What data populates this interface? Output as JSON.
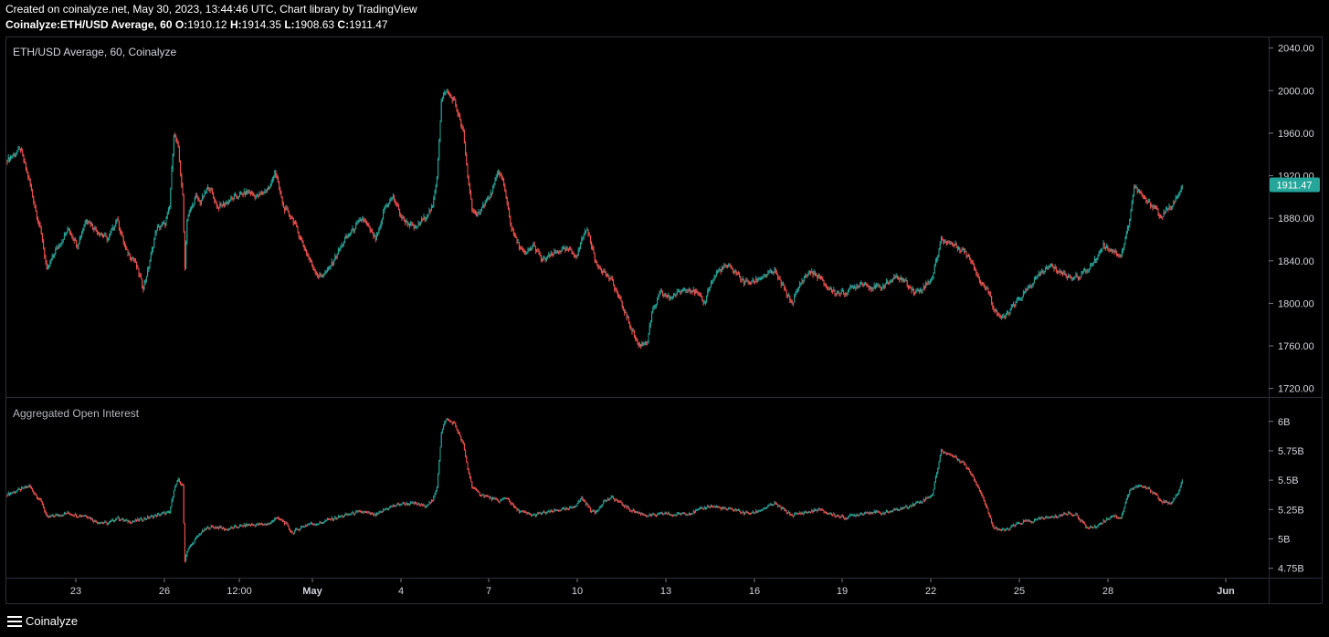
{
  "header": {
    "line1": "Created on coinalyze.net, May 30, 2023, 13:44:46 UTC, Chart library by TradingView",
    "symbol": "Coinalyze:ETH/USD Average, 60",
    "o_label": "O:",
    "o_value": "1910.12",
    "h_label": "H:",
    "h_value": "1914.35",
    "l_label": "L:",
    "l_value": "1908.63",
    "c_label": "C:",
    "c_value": "1911.47"
  },
  "footer": {
    "brand": "Coinalyze",
    "menu_icon": "hamburger-icon"
  },
  "colors": {
    "up": "#26a69a",
    "down": "#ef5350",
    "background": "#000000",
    "border": "#2a2e39",
    "price_badge": "#26a69a",
    "text": "#d1d4dc"
  },
  "chart_data": [
    {
      "type": "candlestick",
      "title": "ETH/USD Average, 60, Coinalyze",
      "ylim": [
        1712,
        2050
      ],
      "y_ticks": [
        "1720.00",
        "1760.00",
        "1800.00",
        "1840.00",
        "1880.00",
        "1920.00",
        "1960.00",
        "2000.00",
        "2040.00"
      ],
      "last_price_label": "1911.47",
      "last_price": 1911.47,
      "x_tick_labels": [
        "23",
        "26",
        "12:00",
        "May",
        "4",
        "7",
        "10",
        "13",
        "16",
        "19",
        "22",
        "25",
        "28",
        "Jun"
      ],
      "path": [
        [
          0,
          1935
        ],
        [
          3,
          1945
        ],
        [
          5,
          1915
        ],
        [
          8,
          1860
        ],
        [
          9,
          1830
        ],
        [
          11,
          1850
        ],
        [
          14,
          1870
        ],
        [
          16,
          1855
        ],
        [
          18,
          1880
        ],
        [
          20,
          1870
        ],
        [
          23,
          1860
        ],
        [
          25,
          1880
        ],
        [
          27,
          1850
        ],
        [
          29,
          1840
        ],
        [
          31,
          1815
        ],
        [
          32,
          1830
        ],
        [
          33,
          1850
        ],
        [
          34,
          1870
        ],
        [
          36,
          1875
        ],
        [
          37,
          1890
        ],
        [
          38,
          1960
        ],
        [
          39,
          1945
        ],
        [
          40,
          1900
        ],
        [
          40.5,
          1835
        ],
        [
          41,
          1880
        ],
        [
          43,
          1900
        ],
        [
          44,
          1895
        ],
        [
          46,
          1910
        ],
        [
          48,
          1890
        ],
        [
          50,
          1895
        ],
        [
          52,
          1900
        ],
        [
          55,
          1905
        ],
        [
          57,
          1900
        ],
        [
          60,
          1910
        ],
        [
          61,
          1925
        ],
        [
          63,
          1890
        ],
        [
          65,
          1880
        ],
        [
          67,
          1860
        ],
        [
          69,
          1840
        ],
        [
          71,
          1825
        ],
        [
          73,
          1830
        ],
        [
          75,
          1845
        ],
        [
          77,
          1860
        ],
        [
          79,
          1870
        ],
        [
          81,
          1880
        ],
        [
          84,
          1860
        ],
        [
          85,
          1870
        ],
        [
          86,
          1890
        ],
        [
          88,
          1900
        ],
        [
          90,
          1880
        ],
        [
          93,
          1870
        ],
        [
          95,
          1880
        ],
        [
          97,
          1890
        ],
        [
          98,
          1920
        ],
        [
          99,
          1990
        ],
        [
          100,
          2000
        ],
        [
          102,
          1990
        ],
        [
          104,
          1960
        ],
        [
          105,
          1920
        ],
        [
          106,
          1890
        ],
        [
          107,
          1880
        ],
        [
          108,
          1890
        ],
        [
          110,
          1900
        ],
        [
          111,
          1910
        ],
        [
          112,
          1925
        ],
        [
          113,
          1915
        ],
        [
          114,
          1895
        ],
        [
          115,
          1870
        ],
        [
          116,
          1860
        ],
        [
          118,
          1845
        ],
        [
          120,
          1855
        ],
        [
          122,
          1840
        ],
        [
          124,
          1845
        ],
        [
          126,
          1850
        ],
        [
          128,
          1850
        ],
        [
          130,
          1845
        ],
        [
          131,
          1860
        ],
        [
          132,
          1870
        ],
        [
          133,
          1860
        ],
        [
          134,
          1840
        ],
        [
          136,
          1830
        ],
        [
          138,
          1820
        ],
        [
          140,
          1800
        ],
        [
          142,
          1780
        ],
        [
          144,
          1760
        ],
        [
          146,
          1765
        ],
        [
          147,
          1790
        ],
        [
          149,
          1810
        ],
        [
          151,
          1805
        ],
        [
          153,
          1810
        ],
        [
          155,
          1815
        ],
        [
          157,
          1810
        ],
        [
          159,
          1800
        ],
        [
          160,
          1815
        ],
        [
          162,
          1830
        ],
        [
          164,
          1835
        ],
        [
          166,
          1830
        ],
        [
          168,
          1820
        ],
        [
          170,
          1820
        ],
        [
          172,
          1825
        ],
        [
          175,
          1830
        ],
        [
          177,
          1815
        ],
        [
          179,
          1800
        ],
        [
          181,
          1820
        ],
        [
          183,
          1830
        ],
        [
          185,
          1825
        ],
        [
          187,
          1815
        ],
        [
          189,
          1810
        ],
        [
          191,
          1810
        ],
        [
          193,
          1815
        ],
        [
          195,
          1820
        ],
        [
          197,
          1815
        ],
        [
          199,
          1815
        ],
        [
          201,
          1820
        ],
        [
          203,
          1825
        ],
        [
          205,
          1820
        ],
        [
          207,
          1810
        ],
        [
          209,
          1815
        ],
        [
          211,
          1825
        ],
        [
          213,
          1860
        ],
        [
          216,
          1855
        ],
        [
          218,
          1850
        ],
        [
          220,
          1840
        ],
        [
          222,
          1820
        ],
        [
          224,
          1810
        ],
        [
          225,
          1795
        ],
        [
          227,
          1785
        ],
        [
          228,
          1790
        ],
        [
          230,
          1800
        ],
        [
          232,
          1810
        ],
        [
          234,
          1820
        ],
        [
          236,
          1830
        ],
        [
          238,
          1835
        ],
        [
          240,
          1830
        ],
        [
          242,
          1825
        ],
        [
          244,
          1825
        ],
        [
          246,
          1830
        ],
        [
          248,
          1840
        ],
        [
          250,
          1855
        ],
        [
          252,
          1850
        ],
        [
          254,
          1845
        ],
        [
          255,
          1860
        ],
        [
          256,
          1880
        ],
        [
          257,
          1910
        ],
        [
          258,
          1905
        ],
        [
          260,
          1895
        ],
        [
          262,
          1890
        ],
        [
          263,
          1880
        ],
        [
          265,
          1890
        ],
        [
          267,
          1900
        ],
        [
          268,
          1910
        ]
      ]
    },
    {
      "type": "candlestick",
      "title": "Aggregated Open Interest",
      "ylim": [
        4.67,
        6.2
      ],
      "y_ticks": [
        "4.75B",
        "5B",
        "5.25B",
        "5.5B",
        "5.75B",
        "6B"
      ],
      "path": [
        [
          0,
          5.38
        ],
        [
          3,
          5.42
        ],
        [
          5,
          5.45
        ],
        [
          8,
          5.3
        ],
        [
          9,
          5.18
        ],
        [
          11,
          5.2
        ],
        [
          14,
          5.22
        ],
        [
          16,
          5.2
        ],
        [
          18,
          5.2
        ],
        [
          20,
          5.15
        ],
        [
          23,
          5.13
        ],
        [
          25,
          5.18
        ],
        [
          27,
          5.15
        ],
        [
          29,
          5.15
        ],
        [
          31,
          5.17
        ],
        [
          32,
          5.18
        ],
        [
          34,
          5.2
        ],
        [
          36,
          5.22
        ],
        [
          37,
          5.22
        ],
        [
          38,
          5.42
        ],
        [
          39,
          5.5
        ],
        [
          40,
          5.45
        ],
        [
          40.5,
          4.82
        ],
        [
          41,
          4.9
        ],
        [
          43,
          5.0
        ],
        [
          44,
          5.05
        ],
        [
          46,
          5.1
        ],
        [
          48,
          5.1
        ],
        [
          50,
          5.08
        ],
        [
          52,
          5.1
        ],
        [
          55,
          5.12
        ],
        [
          57,
          5.12
        ],
        [
          60,
          5.13
        ],
        [
          61,
          5.18
        ],
        [
          63,
          5.15
        ],
        [
          65,
          5.05
        ],
        [
          67,
          5.1
        ],
        [
          69,
          5.13
        ],
        [
          71,
          5.13
        ],
        [
          73,
          5.16
        ],
        [
          75,
          5.18
        ],
        [
          77,
          5.2
        ],
        [
          79,
          5.22
        ],
        [
          81,
          5.23
        ],
        [
          84,
          5.2
        ],
        [
          85,
          5.22
        ],
        [
          86,
          5.25
        ],
        [
          88,
          5.28
        ],
        [
          90,
          5.3
        ],
        [
          93,
          5.3
        ],
        [
          95,
          5.28
        ],
        [
          97,
          5.32
        ],
        [
          98,
          5.45
        ],
        [
          99,
          5.9
        ],
        [
          100,
          6.02
        ],
        [
          102,
          5.98
        ],
        [
          104,
          5.8
        ],
        [
          105,
          5.6
        ],
        [
          106,
          5.45
        ],
        [
          107,
          5.4
        ],
        [
          108,
          5.38
        ],
        [
          110,
          5.35
        ],
        [
          112,
          5.32
        ],
        [
          114,
          5.35
        ],
        [
          115,
          5.3
        ],
        [
          116,
          5.25
        ],
        [
          118,
          5.22
        ],
        [
          120,
          5.2
        ],
        [
          122,
          5.22
        ],
        [
          124,
          5.23
        ],
        [
          126,
          5.25
        ],
        [
          128,
          5.25
        ],
        [
          130,
          5.3
        ],
        [
          131,
          5.35
        ],
        [
          132,
          5.3
        ],
        [
          133,
          5.25
        ],
        [
          134,
          5.22
        ],
        [
          136,
          5.32
        ],
        [
          138,
          5.35
        ],
        [
          140,
          5.3
        ],
        [
          142,
          5.25
        ],
        [
          144,
          5.22
        ],
        [
          146,
          5.2
        ],
        [
          148,
          5.2
        ],
        [
          150,
          5.22
        ],
        [
          152,
          5.2
        ],
        [
          154,
          5.22
        ],
        [
          156,
          5.22
        ],
        [
          158,
          5.25
        ],
        [
          160,
          5.28
        ],
        [
          162,
          5.27
        ],
        [
          164,
          5.25
        ],
        [
          166,
          5.25
        ],
        [
          168,
          5.22
        ],
        [
          170,
          5.22
        ],
        [
          172,
          5.25
        ],
        [
          175,
          5.3
        ],
        [
          177,
          5.25
        ],
        [
          179,
          5.2
        ],
        [
          181,
          5.22
        ],
        [
          183,
          5.23
        ],
        [
          185,
          5.25
        ],
        [
          187,
          5.22
        ],
        [
          189,
          5.2
        ],
        [
          191,
          5.18
        ],
        [
          193,
          5.2
        ],
        [
          195,
          5.22
        ],
        [
          197,
          5.23
        ],
        [
          199,
          5.22
        ],
        [
          201,
          5.23
        ],
        [
          203,
          5.25
        ],
        [
          205,
          5.27
        ],
        [
          207,
          5.3
        ],
        [
          209,
          5.33
        ],
        [
          211,
          5.38
        ],
        [
          213,
          5.75
        ],
        [
          216,
          5.7
        ],
        [
          218,
          5.65
        ],
        [
          220,
          5.55
        ],
        [
          222,
          5.4
        ],
        [
          224,
          5.2
        ],
        [
          225,
          5.1
        ],
        [
          227,
          5.07
        ],
        [
          228,
          5.08
        ],
        [
          230,
          5.12
        ],
        [
          232,
          5.15
        ],
        [
          234,
          5.15
        ],
        [
          236,
          5.18
        ],
        [
          238,
          5.18
        ],
        [
          240,
          5.2
        ],
        [
          242,
          5.22
        ],
        [
          244,
          5.2
        ],
        [
          246,
          5.1
        ],
        [
          248,
          5.1
        ],
        [
          250,
          5.15
        ],
        [
          252,
          5.2
        ],
        [
          254,
          5.18
        ],
        [
          255,
          5.3
        ],
        [
          256,
          5.42
        ],
        [
          258,
          5.45
        ],
        [
          260,
          5.43
        ],
        [
          262,
          5.38
        ],
        [
          263,
          5.32
        ],
        [
          265,
          5.3
        ],
        [
          267,
          5.38
        ],
        [
          268,
          5.5
        ]
      ]
    }
  ]
}
